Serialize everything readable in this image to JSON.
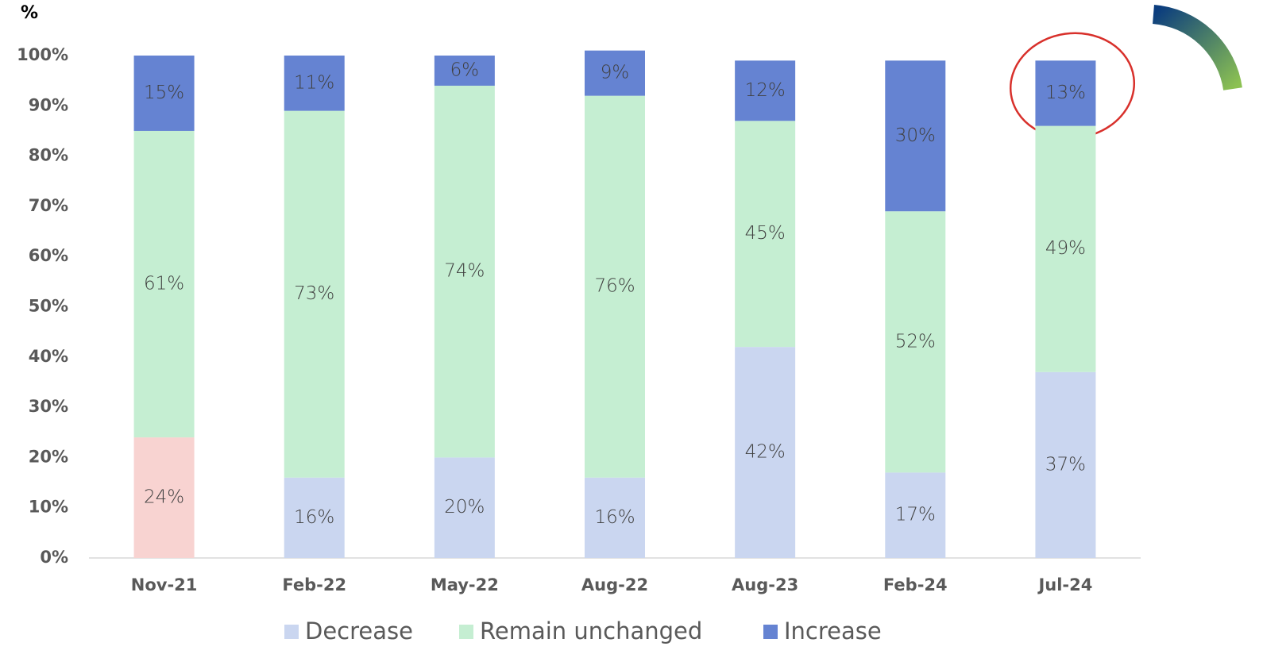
{
  "chart_data": {
    "type": "stacked_bar",
    "y_label": "%",
    "categories": [
      "Nov-21",
      "Feb-22",
      "May-22",
      "Aug-22",
      "Aug-23",
      "Feb-24",
      "Jul-24"
    ],
    "series": [
      {
        "name": "Decrease",
        "color": "#cad6f0",
        "colors": [
          "#f8d3d1",
          "#cad6f0",
          "#cad6f0",
          "#cad6f0",
          "#cad6f0",
          "#cad6f0",
          "#cad6f0"
        ],
        "values": [
          24,
          16,
          20,
          16,
          42,
          17,
          37
        ],
        "value_labels": [
          "24%",
          "16%",
          "20%",
          "16%",
          "42%",
          "17%",
          "37%"
        ]
      },
      {
        "name": "Remain unchanged",
        "color": "#c5eed2",
        "values": [
          61,
          73,
          74,
          76,
          45,
          52,
          49
        ],
        "value_labels": [
          "61%",
          "73%",
          "74%",
          "76%",
          "45%",
          "52%",
          "49%"
        ]
      },
      {
        "name": "Increase",
        "color": "#6583d2",
        "values": [
          15,
          11,
          6,
          9,
          12,
          30,
          13
        ],
        "value_labels": [
          "15%",
          "11%",
          "6%",
          "9%",
          "12%",
          "30%",
          "13%"
        ]
      }
    ],
    "ylim": [
      0,
      100
    ],
    "yticks": [
      {
        "value": 0,
        "label": "0%"
      },
      {
        "value": 10,
        "label": "10%"
      },
      {
        "value": 20,
        "label": "20%"
      },
      {
        "value": 30,
        "label": "30%"
      },
      {
        "value": 40,
        "label": "40%"
      },
      {
        "value": 50,
        "label": "50%"
      },
      {
        "value": 60,
        "label": "60%"
      },
      {
        "value": 70,
        "label": "70%"
      },
      {
        "value": 80,
        "label": "80%"
      },
      {
        "value": 90,
        "label": "90%"
      },
      {
        "value": 100,
        "label": "100%"
      }
    ],
    "legend": "bottom"
  }
}
